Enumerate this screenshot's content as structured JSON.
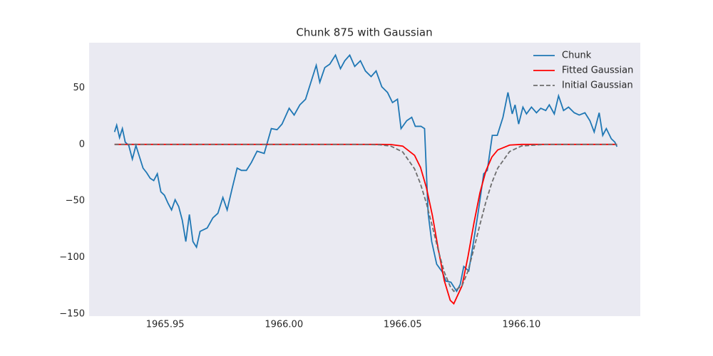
{
  "chart_data": {
    "type": "line",
    "title": "Chunk 875 with Gaussian",
    "xlim": [
      1965.918,
      1966.15
    ],
    "ylim": [
      -152,
      90
    ],
    "xticks": [
      1965.95,
      {
        "value": 1966,
        "label": "1966.00"
      },
      1966.05,
      {
        "value": 1966.1,
        "label": "1966.10"
      }
    ],
    "yticks": [
      {
        "value": -150,
        "label": "−150"
      },
      {
        "value": -100,
        "label": "−100"
      },
      {
        "value": -50,
        "label": "−50"
      },
      0,
      50
    ],
    "grid": false,
    "legend": "upper right",
    "background": "#eaeaf2",
    "series": [
      {
        "name": "Chunk",
        "color": "#1f77b4",
        "linestyle": "solid",
        "x": [
          1965.9287,
          1965.9296,
          1965.9308,
          1965.932,
          1965.9332,
          1965.9347,
          1965.9362,
          1965.9377,
          1965.9392,
          1965.9407,
          1965.9422,
          1965.9437,
          1965.9452,
          1965.9467,
          1965.9482,
          1965.9497,
          1965.9512,
          1965.9527,
          1965.9542,
          1965.9557,
          1965.9572,
          1965.9587,
          1965.9602,
          1965.9617,
          1965.9632,
          1965.9647,
          1965.9677,
          1965.9701,
          1965.9722,
          1965.9743,
          1965.9761,
          1965.9782,
          1965.9803,
          1965.9821,
          1965.9842,
          1965.9863,
          1965.9887,
          1965.9917,
          1965.9947,
          1965.9971,
          1965.9992,
          1966.0022,
          1966.0043,
          1966.0067,
          1966.0091,
          1966.0112,
          1966.0136,
          1966.0151,
          1966.0172,
          1966.0193,
          1966.0217,
          1966.0238,
          1966.0256,
          1966.0277,
          1966.0298,
          1966.0322,
          1966.0343,
          1966.0367,
          1966.0388,
          1966.0412,
          1966.0436,
          1966.0457,
          1966.0478,
          1966.0493,
          1966.0517,
          1966.0538,
          1966.0553,
          1966.0577,
          1966.0592,
          1966.0607,
          1966.0622,
          1966.0643,
          1966.0667,
          1966.0682,
          1966.0703,
          1966.0727,
          1966.0742,
          1966.0757,
          1966.0778,
          1966.0796,
          1966.0817,
          1966.0841,
          1966.0856,
          1966.0877,
          1966.0898,
          1966.0922,
          1966.0943,
          1966.0961,
          1966.0973,
          1966.0988,
          1966.1006,
          1966.1021,
          1966.1042,
          1966.1063,
          1966.1081,
          1966.1102,
          1966.1117,
          1966.1138,
          1966.1156,
          1966.1177,
          1966.1198,
          1966.1222,
          1966.1243,
          1966.1267,
          1966.1288,
          1966.1306,
          1966.1327,
          1966.1342,
          1966.1357,
          1966.1378,
          1966.1393,
          1966.1402
        ],
        "values": [
          11,
          17,
          6,
          14,
          2,
          -1,
          -13,
          -1,
          -11,
          -21,
          -25,
          -30,
          -32,
          -26,
          -42,
          -45,
          -52,
          -58,
          -49,
          -55,
          -67,
          -86,
          -62,
          -86,
          -91,
          -77,
          -74,
          -65,
          -61,
          -47,
          -58,
          -39,
          -21,
          -23,
          -23,
          -16,
          -6,
          -8,
          14,
          13,
          18,
          32,
          26,
          35,
          40,
          54,
          70,
          55,
          68,
          71,
          79,
          67,
          74,
          79,
          69,
          74,
          65,
          60,
          65,
          51,
          46,
          37,
          40,
          14,
          21,
          24,
          16,
          16,
          14,
          -61,
          -86,
          -106,
          -113,
          -121,
          -122,
          -130,
          -124,
          -108,
          -112,
          -89,
          -61,
          -26,
          -23,
          8,
          8,
          24,
          46,
          27,
          35,
          18,
          33,
          27,
          33,
          28,
          32,
          30,
          35,
          27,
          43,
          30,
          33,
          28,
          26,
          28,
          21,
          11,
          28,
          8,
          14,
          5,
          2,
          -2
        ]
      },
      {
        "name": "Fitted Gaussian",
        "color": "#ff0000",
        "linestyle": "solid",
        "x": [
          1965.9287,
          1966.03,
          1966.04,
          1966.045,
          1966.05,
          1966.055,
          1966.0575,
          1966.06,
          1966.0625,
          1966.065,
          1966.0675,
          1966.07,
          1966.0715,
          1966.075,
          1966.0775,
          1966.08,
          1966.0825,
          1966.085,
          1966.0875,
          1966.09,
          1966.095,
          1966.1,
          1966.11,
          1966.1402
        ],
        "values": [
          0,
          0,
          0,
          -0.1,
          -1.5,
          -9.7,
          -20.4,
          -38.5,
          -63,
          -93,
          -120.5,
          -138,
          -141,
          -125,
          -99,
          -69.5,
          -42.9,
          -23.5,
          -11.3,
          -4.9,
          -0.6,
          0,
          0,
          0
        ]
      },
      {
        "name": "Initial Gaussian",
        "color": "#6e6e6e",
        "linestyle": "dashed",
        "x": [
          1965.9287,
          1966.03,
          1966.04,
          1966.045,
          1966.05,
          1966.055,
          1966.0575,
          1966.06,
          1966.0625,
          1966.065,
          1966.0675,
          1966.07,
          1966.0715,
          1966.075,
          1966.0775,
          1966.08,
          1966.0825,
          1966.085,
          1966.0875,
          1966.09,
          1966.095,
          1966.1,
          1966.11,
          1966.1402
        ],
        "values": [
          0,
          0,
          -0.3,
          -1.5,
          -6.7,
          -21.7,
          -35,
          -52.3,
          -72.8,
          -94,
          -113,
          -125.7,
          -130,
          -125,
          -112,
          -92,
          -71,
          -51,
          -34,
          -21,
          -6.3,
          -1.4,
          0,
          0
        ]
      }
    ]
  }
}
